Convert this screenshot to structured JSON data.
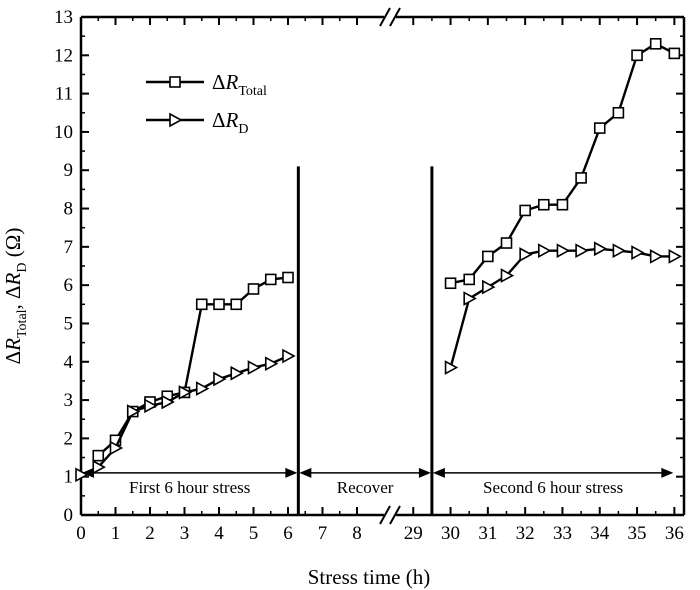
{
  "chart_data": {
    "type": "line",
    "title": "",
    "xlabel": "Stress time (h)",
    "ylabel": "ΔR_Total, ΔR_D (Ω)",
    "ylim": [
      0,
      13
    ],
    "y_ticks": [
      "0",
      "1",
      "2",
      "3",
      "4",
      "5",
      "6",
      "7",
      "8",
      "9",
      "10",
      "11",
      "12",
      "13"
    ],
    "x_axis": {
      "type": "broken",
      "segments": [
        {
          "range": [
            0,
            8.5
          ],
          "ticks": [
            "0",
            "1",
            "2",
            "3",
            "4",
            "5",
            "6",
            "7",
            "8"
          ]
        },
        {
          "range": [
            28.5,
            36
          ],
          "ticks": [
            "29",
            "30",
            "31",
            "32",
            "33",
            "34",
            "35",
            "36"
          ]
        }
      ]
    },
    "grid": false,
    "legend": {
      "position": "top-left",
      "entries": [
        {
          "symbol": "ΔR",
          "subscript": "Total",
          "marker": "square"
        },
        {
          "symbol": "ΔR",
          "subscript": "D",
          "marker": "triangle-right"
        }
      ]
    },
    "phases": [
      {
        "label": "First 6 hour stress",
        "x_from": 0,
        "x_to": 6.3
      },
      {
        "label": "Recover",
        "x_from": 6.3,
        "x_to": 29.5
      },
      {
        "label": "Second 6 hour stress",
        "x_from": 29.5,
        "x_to": 36
      }
    ],
    "phase_dividers_x": [
      6.3,
      29.5
    ],
    "series": [
      {
        "name": "ΔR_Total",
        "marker": "square",
        "segments": [
          {
            "x": [
              0.5,
              1.0,
              1.5,
              2.0,
              2.5,
              3.0,
              3.5,
              4.0,
              4.5,
              5.0,
              5.5,
              6.0
            ],
            "y": [
              1.55,
              1.95,
              2.7,
              2.95,
              3.1,
              3.2,
              5.5,
              5.5,
              5.5,
              5.9,
              6.15,
              6.2
            ]
          },
          {
            "x": [
              30.0,
              30.5,
              31.0,
              31.5,
              32.0,
              32.5,
              33.0,
              33.5,
              34.0,
              34.5,
              35.0,
              35.5,
              36.0
            ],
            "y": [
              6.05,
              6.15,
              6.75,
              7.1,
              7.95,
              8.1,
              8.1,
              8.8,
              10.1,
              10.5,
              12.0,
              12.3,
              12.05
            ]
          }
        ]
      },
      {
        "name": "ΔR_D",
        "marker": "triangle-right",
        "segments": [
          {
            "x": [
              0.0,
              0.5,
              1.0,
              1.5,
              2.0,
              2.5,
              3.0,
              3.5,
              4.0,
              4.5,
              5.0,
              5.5,
              6.0
            ],
            "y": [
              1.05,
              1.25,
              1.75,
              2.7,
              2.85,
              2.95,
              3.2,
              3.3,
              3.55,
              3.7,
              3.85,
              3.95,
              4.15
            ]
          },
          {
            "x": [
              30.0,
              30.5,
              31.0,
              31.5,
              32.0,
              32.5,
              33.0,
              33.5,
              34.0,
              34.5,
              35.0,
              35.5,
              36.0
            ],
            "y": [
              3.85,
              5.65,
              5.95,
              6.25,
              6.8,
              6.9,
              6.9,
              6.9,
              6.95,
              6.9,
              6.85,
              6.75,
              6.75
            ]
          }
        ]
      }
    ]
  }
}
